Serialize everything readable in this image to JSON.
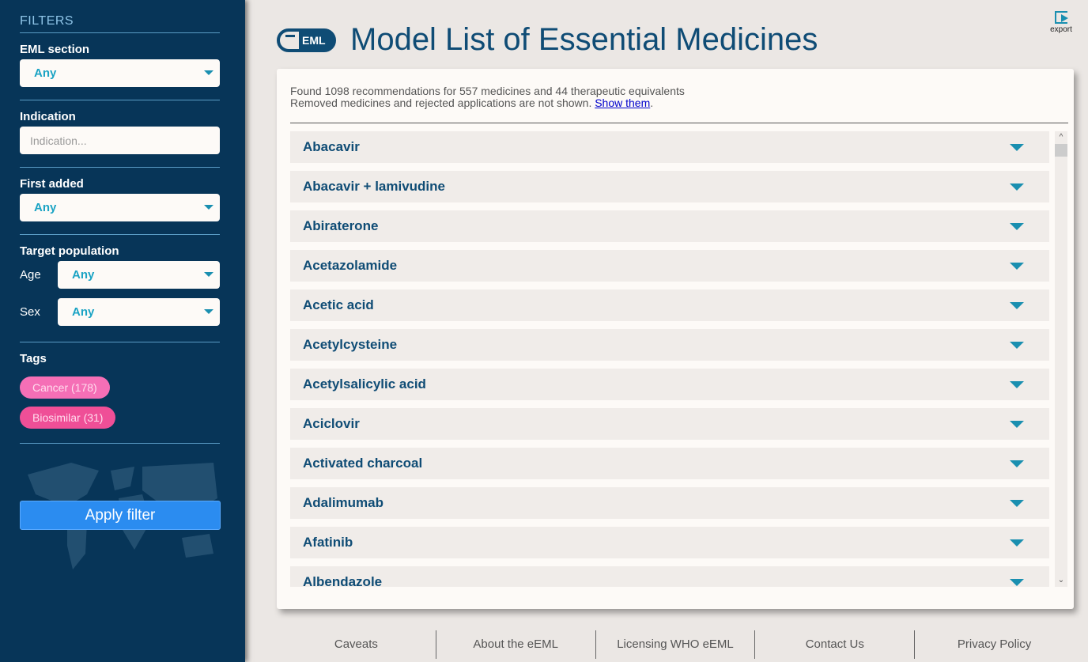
{
  "sidebar": {
    "title": "FILTERS",
    "eml_section": {
      "label": "EML section",
      "value": "Any"
    },
    "indication": {
      "label": "Indication",
      "placeholder": "Indication..."
    },
    "first_added": {
      "label": "First added",
      "value": "Any"
    },
    "target_population": {
      "label": "Target population",
      "age_label": "Age",
      "age_value": "Any",
      "sex_label": "Sex",
      "sex_value": "Any"
    },
    "tags": {
      "label": "Tags",
      "items": [
        {
          "label": "Cancer (178)",
          "color": "#f56fb6"
        },
        {
          "label": "Biosimilar (31)",
          "color": "#ef4f97"
        }
      ]
    },
    "apply_label": "Apply filter"
  },
  "header": {
    "logo_text": "EML",
    "title": "Model List of Essential Medicines",
    "export_label": "export"
  },
  "summary": {
    "line1": "Found 1098 recommendations for 557 medicines and 44 therapeutic equivalents",
    "line2": "Removed medicines and rejected applications are not shown. ",
    "link": "Show them",
    "after": "."
  },
  "medicines": [
    "Abacavir",
    "Abacavir + lamivudine",
    "Abiraterone",
    "Acetazolamide",
    "Acetic acid",
    "Acetylcysteine",
    "Acetylsalicylic acid",
    "Aciclovir",
    "Activated charcoal",
    "Adalimumab",
    "Afatinib",
    "Albendazole"
  ],
  "footer": [
    "Caveats",
    "About the eEML",
    "Licensing WHO eEML",
    "Contact Us",
    "Privacy Policy"
  ]
}
